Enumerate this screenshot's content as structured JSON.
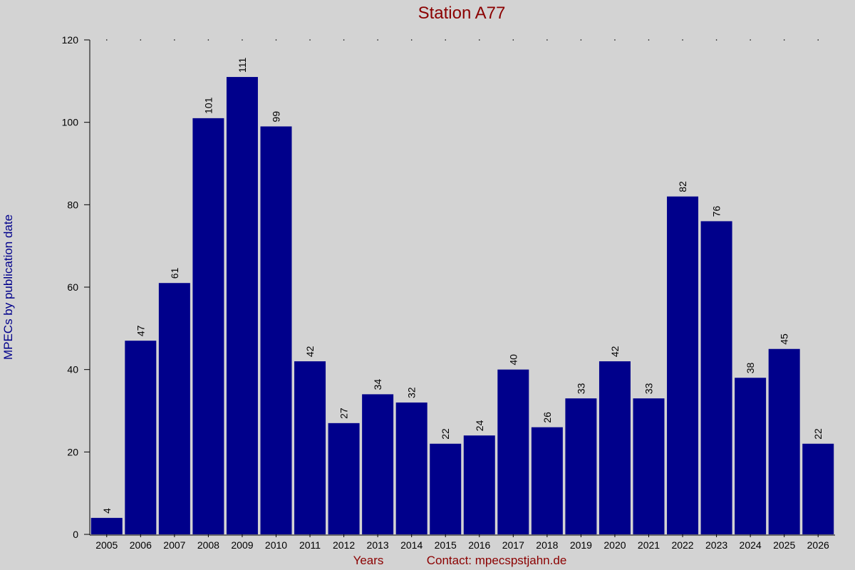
{
  "chart_data": {
    "type": "bar",
    "title": "Station A77",
    "y_label": "MPECs by publication date",
    "x_label": "Years",
    "contact": "Contact: mpecspstjahn.de",
    "categories": [
      "2005",
      "2006",
      "2007",
      "2008",
      "2009",
      "2010",
      "2011",
      "2012",
      "2013",
      "2014",
      "2015",
      "2016",
      "2017",
      "2018",
      "2019",
      "2020",
      "2021",
      "2022",
      "2023",
      "2024",
      "2025",
      "2026"
    ],
    "values": [
      4,
      47,
      61,
      101,
      111,
      99,
      42,
      27,
      34,
      32,
      22,
      24,
      40,
      26,
      33,
      42,
      33,
      82,
      76,
      38,
      45,
      22
    ],
    "color": "#00008b",
    "ylim": [
      0,
      120
    ],
    "yticks": [
      0,
      20,
      40,
      60,
      80,
      100,
      120
    ],
    "grid": false
  }
}
